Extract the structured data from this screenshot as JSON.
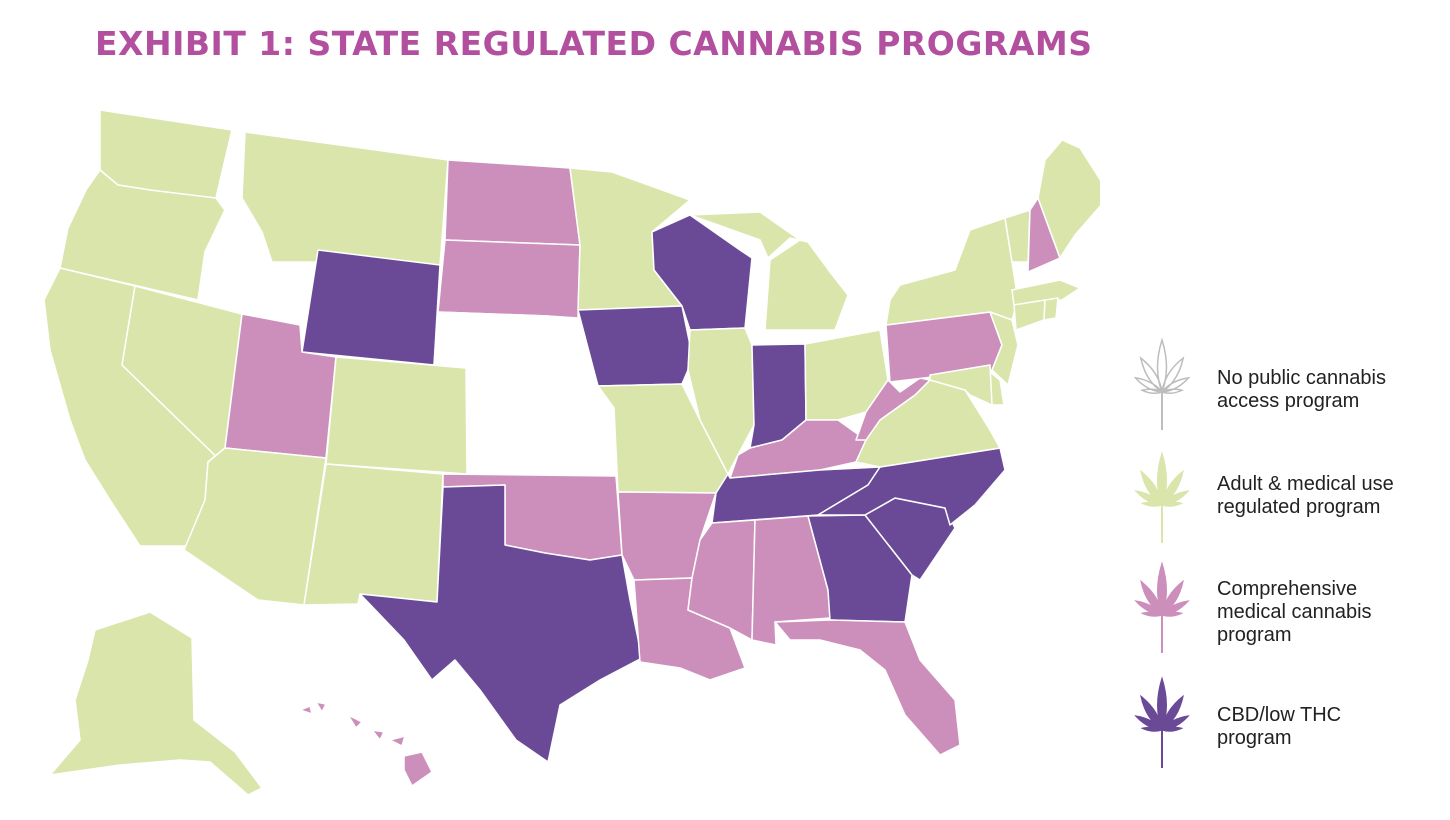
{
  "title": "EXHIBIT 1: STATE REGULATED CANNABIS PROGRAMS",
  "colors": {
    "none": "#ffffff",
    "adult": "#d9e5aa",
    "medical": "#cc8fbb",
    "cbd": "#6a4a96",
    "border": "#ffffff",
    "outline_none": "#bdbdbd"
  },
  "legend": [
    {
      "key": "none",
      "label_lines": [
        "No public cannabis",
        "access program"
      ],
      "icon": "cannabis-leaf-outline-icon"
    },
    {
      "key": "adult",
      "label_lines": [
        "Adult & medical use",
        "regulated program"
      ],
      "icon": "cannabis-leaf-icon"
    },
    {
      "key": "medical",
      "label_lines": [
        "Comprehensive",
        "medical cannabis",
        "program"
      ],
      "icon": "cannabis-leaf-icon"
    },
    {
      "key": "cbd",
      "label_lines": [
        "CBD/low THC",
        "program"
      ],
      "icon": "cannabis-leaf-icon"
    }
  ],
  "states": [
    {
      "id": "WA",
      "category": "adult"
    },
    {
      "id": "OR",
      "category": "adult"
    },
    {
      "id": "CA",
      "category": "adult"
    },
    {
      "id": "NV",
      "category": "adult"
    },
    {
      "id": "ID",
      "category": "none"
    },
    {
      "id": "MT",
      "category": "adult"
    },
    {
      "id": "WY",
      "category": "cbd"
    },
    {
      "id": "UT",
      "category": "medical"
    },
    {
      "id": "AZ",
      "category": "adult"
    },
    {
      "id": "CO",
      "category": "adult"
    },
    {
      "id": "NM",
      "category": "adult"
    },
    {
      "id": "ND",
      "category": "medical"
    },
    {
      "id": "SD",
      "category": "medical"
    },
    {
      "id": "NE",
      "category": "none"
    },
    {
      "id": "KS",
      "category": "none"
    },
    {
      "id": "OK",
      "category": "medical"
    },
    {
      "id": "TX",
      "category": "cbd"
    },
    {
      "id": "MN",
      "category": "adult"
    },
    {
      "id": "IA",
      "category": "cbd"
    },
    {
      "id": "MO",
      "category": "adult"
    },
    {
      "id": "AR",
      "category": "medical"
    },
    {
      "id": "LA",
      "category": "medical"
    },
    {
      "id": "WI",
      "category": "cbd"
    },
    {
      "id": "IL",
      "category": "adult"
    },
    {
      "id": "MI",
      "category": "adult"
    },
    {
      "id": "IN",
      "category": "cbd"
    },
    {
      "id": "OH",
      "category": "adult"
    },
    {
      "id": "KY",
      "category": "medical"
    },
    {
      "id": "TN",
      "category": "cbd"
    },
    {
      "id": "MS",
      "category": "medical"
    },
    {
      "id": "AL",
      "category": "medical"
    },
    {
      "id": "GA",
      "category": "cbd"
    },
    {
      "id": "FL",
      "category": "medical"
    },
    {
      "id": "SC",
      "category": "cbd"
    },
    {
      "id": "NC",
      "category": "cbd"
    },
    {
      "id": "VA",
      "category": "adult"
    },
    {
      "id": "WV",
      "category": "medical"
    },
    {
      "id": "PA",
      "category": "medical"
    },
    {
      "id": "NY",
      "category": "adult"
    },
    {
      "id": "VT",
      "category": "adult"
    },
    {
      "id": "NH",
      "category": "medical"
    },
    {
      "id": "ME",
      "category": "adult"
    },
    {
      "id": "MA",
      "category": "adult"
    },
    {
      "id": "CT",
      "category": "adult"
    },
    {
      "id": "RI",
      "category": "adult"
    },
    {
      "id": "NJ",
      "category": "adult"
    },
    {
      "id": "DE",
      "category": "adult"
    },
    {
      "id": "MD",
      "category": "adult"
    },
    {
      "id": "AK",
      "category": "adult"
    },
    {
      "id": "HI",
      "category": "medical"
    }
  ]
}
